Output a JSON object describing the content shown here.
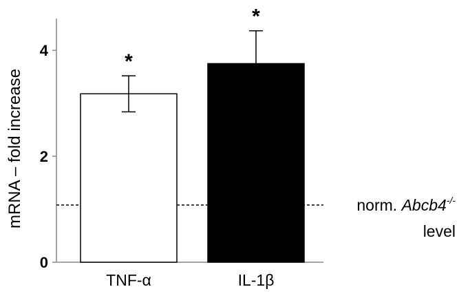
{
  "chart_data": {
    "type": "bar",
    "title": "",
    "xlabel": "",
    "ylabel": "mRNA – fold increase",
    "ylim": [
      0,
      4.6
    ],
    "yticks": [
      0,
      2,
      4
    ],
    "ytick_labels": [
      "0",
      "2",
      "4"
    ],
    "categories": [
      "TNF-α",
      "IL-1β"
    ],
    "values": [
      3.18,
      3.75
    ],
    "errors": [
      0.34,
      0.62
    ],
    "bar_colors": [
      "#ffffff",
      "#000000"
    ],
    "significance": [
      "*",
      "*"
    ],
    "reference_line": {
      "value": 1.08,
      "style": "dashed",
      "label_parts": [
        "norm. ",
        "Abcb4",
        "-/-"
      ],
      "label_line2": "level"
    },
    "grid": false,
    "legend": "none"
  }
}
